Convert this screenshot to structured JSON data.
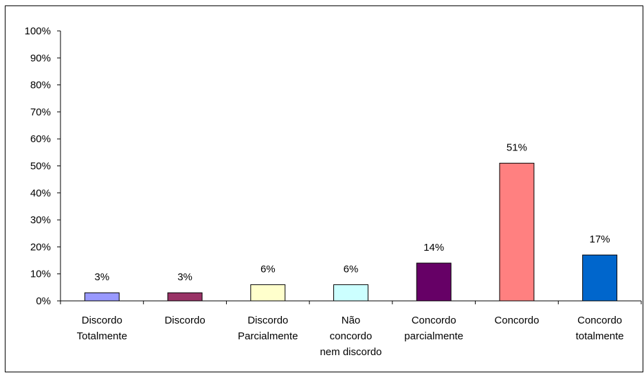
{
  "chart_data": {
    "type": "bar",
    "categories": [
      [
        "Discordo",
        "Totalmente"
      ],
      [
        "Discordo"
      ],
      [
        "Discordo",
        "Parcialmente"
      ],
      [
        "Não",
        "concordo",
        "nem discordo"
      ],
      [
        "Concordo",
        "parcialmente"
      ],
      [
        "Concordo"
      ],
      [
        "Concordo",
        "totalmente"
      ]
    ],
    "values": [
      3,
      3,
      6,
      6,
      14,
      51,
      17
    ],
    "value_labels": [
      "3%",
      "3%",
      "6%",
      "6%",
      "14%",
      "51%",
      "17%"
    ],
    "bar_colors": [
      "#9999FF",
      "#993366",
      "#FFFFCC",
      "#CCFFFF",
      "#660066",
      "#FF8080",
      "#0066CC"
    ],
    "ylim": [
      0,
      100
    ],
    "yticks": [
      "0%",
      "10%",
      "20%",
      "30%",
      "40%",
      "50%",
      "60%",
      "70%",
      "80%",
      "90%",
      "100%"
    ],
    "title": "",
    "xlabel": "",
    "ylabel": "",
    "grid": false,
    "legend": "none"
  }
}
